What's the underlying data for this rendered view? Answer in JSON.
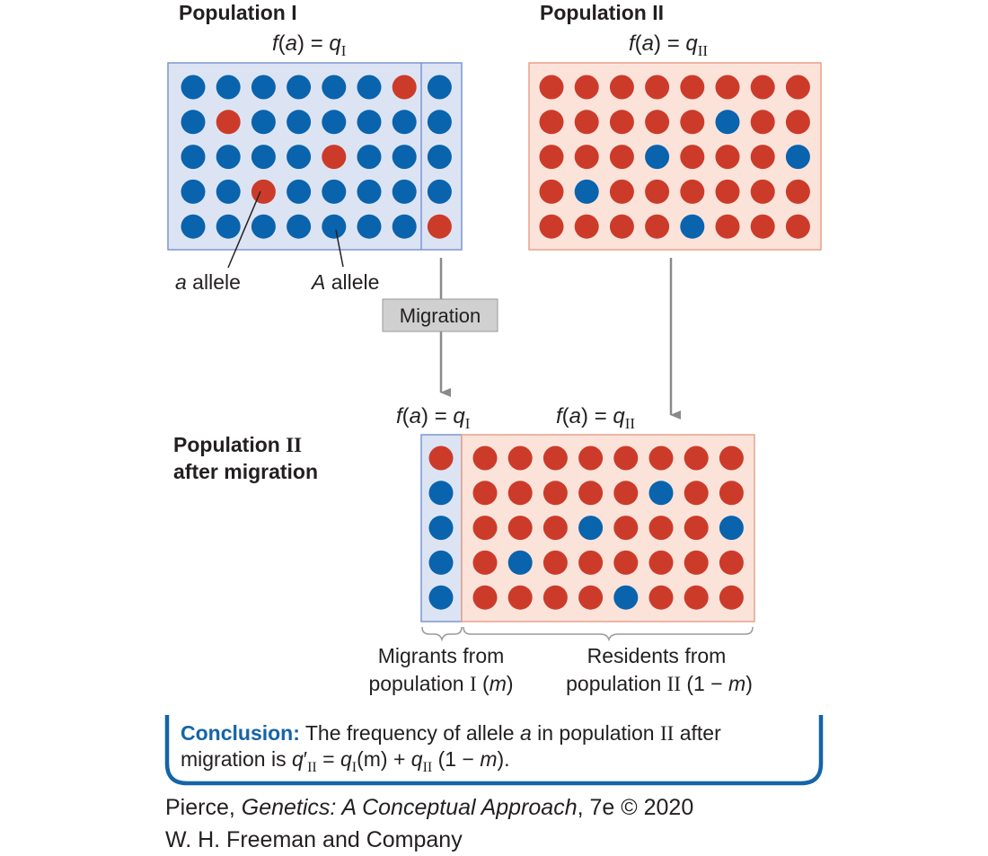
{
  "colors": {
    "a_allele": "#cc3b2a",
    "A_allele": "#0a63ad",
    "pop1_fill": "#dce4f4",
    "pop1_stroke": "#7b96d1",
    "pop2_fill": "#fbe3da",
    "pop2_stroke": "#e8a188",
    "arrow": "#8a8a8a",
    "migration_box_fill": "#d0d0d0",
    "conclusion_accent": "#1464a8"
  },
  "legend": "",
  "population1": {
    "title": "Population I",
    "freq_func": "f",
    "freq_arg": "a",
    "freq_eq": ") = ",
    "freq_var": "q",
    "freq_sub": "I",
    "grid": [
      "AAAAAAaA",
      "AaAAAAAA",
      "AAAAaAAA",
      "AAaAAAAA",
      "AAAAAAAa"
    ],
    "label_a": "a",
    "label_a_rest": " allele",
    "label_A": "A",
    "label_A_rest": " allele"
  },
  "population2": {
    "title": "Population II",
    "freq_func": "f",
    "freq_arg": "a",
    "freq_eq": ") = ",
    "freq_var": "q",
    "freq_sub": "II",
    "grid": [
      "aaaaaaaa",
      "aaaaaAaa",
      "aaaAaaaA",
      "aAaaaaaa",
      "aaaaAaaa"
    ]
  },
  "migration_label": "Migration",
  "after": {
    "title_line1": "Population",
    "title_roman": "II",
    "title_line2": "after migration",
    "migrant_column": [
      "a",
      "A",
      "A",
      "A",
      "A"
    ],
    "freq_left_func": "f",
    "freq_left_arg": "a",
    "freq_left_eq": ") = ",
    "freq_left_var": "q",
    "freq_left_sub": "I",
    "freq_right_func": "f",
    "freq_right_arg": "a",
    "freq_right_eq": ") = ",
    "freq_right_var": "q",
    "freq_right_sub": "II",
    "migrants_line1": "Migrants from",
    "migrants_line2_a": "population ",
    "migrants_line2_roman": "I",
    "migrants_line2_b": " (",
    "migrants_line2_m": "m",
    "migrants_line2_c": ")",
    "residents_line1": "Residents from",
    "residents_line2_a": "population ",
    "residents_line2_roman": "II",
    "residents_line2_b": " (1 − ",
    "residents_line2_m": "m",
    "residents_line2_c": ")"
  },
  "conclusion": {
    "label": "Conclusion:",
    "line1_a": " The frequency of allele ",
    "line1_a_var": "a",
    "line1_b": " in population ",
    "line1_roman": "II",
    "line1_c": " after",
    "line2_a": "migration is ",
    "line2_q": "q",
    "line2_prime": "′",
    "line2_sub1": "II",
    "line2_eq": " = ",
    "line2_q2": "q",
    "line2_sub2": "I",
    "line2_m1": "(m)",
    "line2_plus": " + ",
    "line2_q3": "q",
    "line2_sub3": "II",
    "line2_tail": " (1 − ",
    "line2_m2": "m",
    "line2_end": ")."
  },
  "credit": {
    "line1_a": "Pierce, ",
    "line1_title": "Genetics: A Conceptual Approach",
    "line1_b": ", 7e © 2020",
    "line2": "W. H. Freeman and Company"
  }
}
